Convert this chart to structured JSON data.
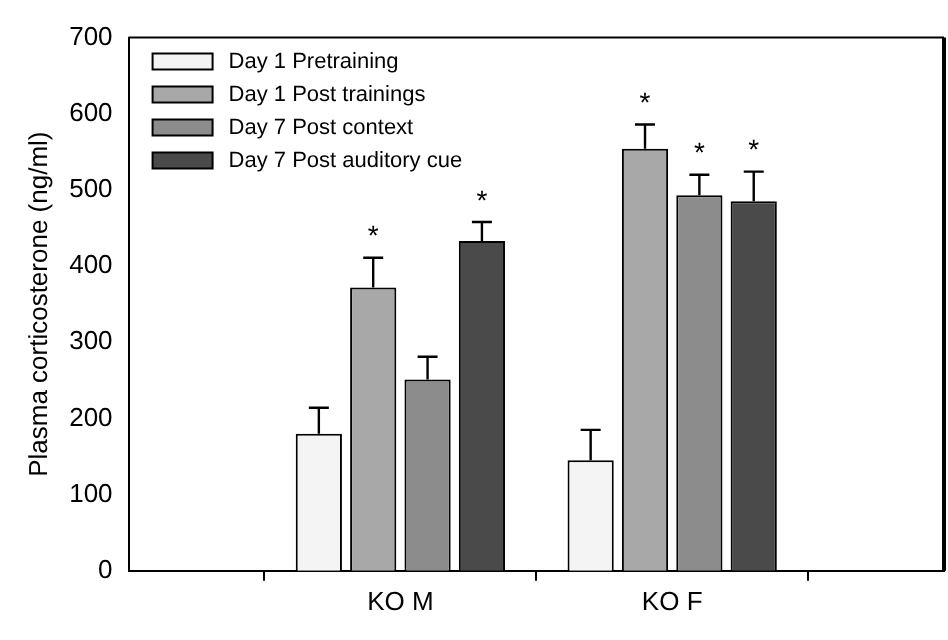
{
  "chart_data": {
    "type": "bar",
    "ylabel": "Plasma corticosterone (ng/ml)",
    "categories": [
      "KO M",
      "KO F"
    ],
    "series": [
      {
        "name": "Day 1 Pretraining",
        "color": "#f4f4f4",
        "values": [
          180,
          145
        ],
        "errors": [
          [
            180,
            214
          ],
          [
            145,
            185
          ]
        ],
        "value_labels": [
          null,
          null
        ]
      },
      {
        "name": "Day 1 Post trainings",
        "color": "#a8a8a8",
        "values": [
          372,
          554
        ],
        "errors": [
          [
            372,
            411
          ],
          [
            554,
            586
          ]
        ],
        "value_labels": [
          "*",
          "*"
        ]
      },
      {
        "name": "Day 7 Post context",
        "color": "#8c8c8c",
        "values": [
          251,
          493
        ],
        "errors": [
          [
            251,
            281
          ],
          [
            493,
            520
          ]
        ],
        "value_labels": [
          null,
          "*"
        ]
      },
      {
        "name": "Day 7 Post auditory cue",
        "color": "#4a4a4a",
        "values": [
          433,
          485
        ],
        "errors": [
          [
            433,
            458
          ],
          [
            485,
            524
          ]
        ],
        "value_labels": [
          "*",
          "*"
        ]
      }
    ],
    "ylim": [
      0,
      700
    ],
    "yticks": [
      0,
      100,
      200,
      300,
      400,
      500,
      600,
      700
    ],
    "legend": "top left"
  }
}
